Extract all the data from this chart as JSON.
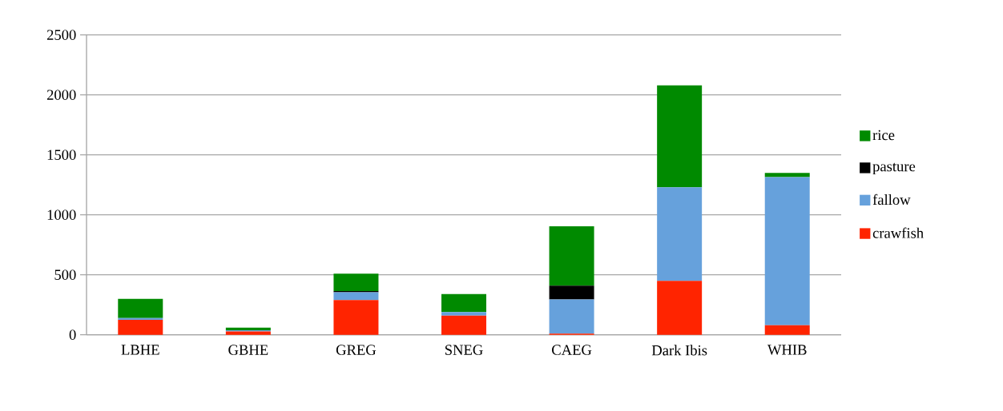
{
  "chart_data": {
    "type": "bar",
    "stacked": true,
    "categories": [
      "LBHE",
      "GBHE",
      "GREG",
      "SNEG",
      "CAEG",
      "Dark Ibis",
      "WHIB"
    ],
    "series": [
      {
        "name": "crawfish",
        "color": "#ff2400",
        "values": [
          125,
          28,
          290,
          160,
          10,
          450,
          80
        ]
      },
      {
        "name": "fallow",
        "color": "#66a1dc",
        "values": [
          15,
          10,
          65,
          30,
          285,
          780,
          1235
        ]
      },
      {
        "name": "pasture",
        "color": "#000000",
        "values": [
          0,
          0,
          10,
          0,
          115,
          0,
          0
        ]
      },
      {
        "name": "rice",
        "color": "#008a00",
        "values": [
          160,
          22,
          145,
          150,
          495,
          850,
          35
        ]
      }
    ],
    "ylim": [
      0,
      2500
    ],
    "yticks": [
      0,
      500,
      1000,
      1500,
      2000,
      2500
    ],
    "grid": "y",
    "legend": "right"
  }
}
